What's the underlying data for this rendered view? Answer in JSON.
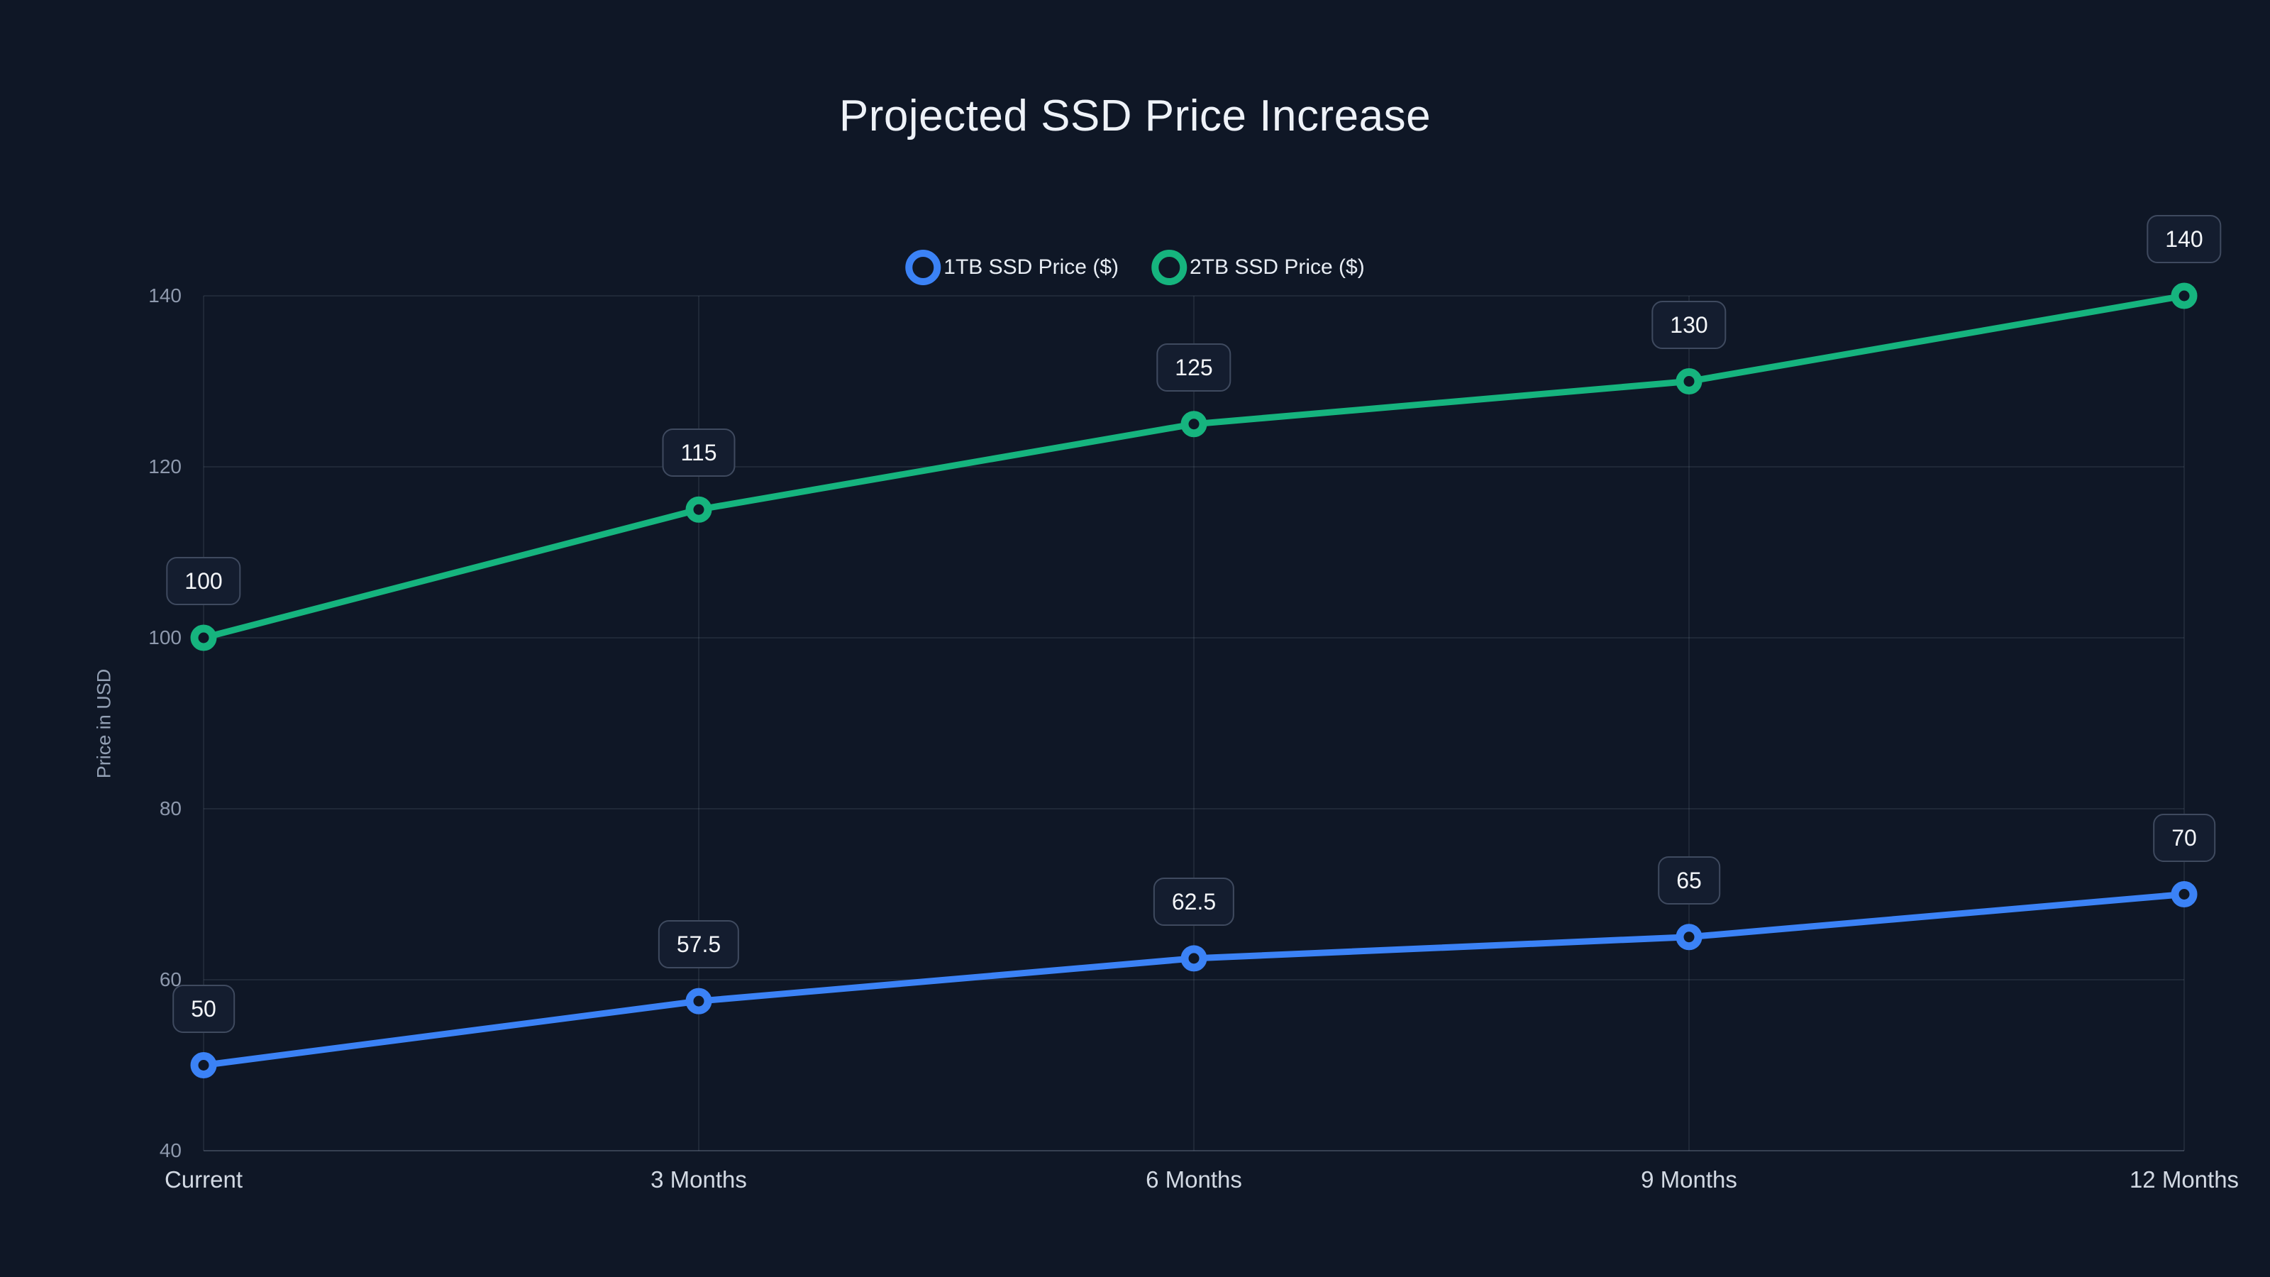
{
  "title": "Projected SSD Price Increase",
  "chart_data": {
    "type": "line",
    "title": "Projected SSD Price Increase",
    "xlabel": "",
    "ylabel": "Price in USD",
    "categories": [
      "Current",
      "3 Months",
      "6 Months",
      "9 Months",
      "12 Months"
    ],
    "series": [
      {
        "name": "1TB SSD Price ($)",
        "color": "#3b82f6",
        "values": [
          50,
          57.5,
          62.5,
          65,
          70
        ]
      },
      {
        "name": "2TB SSD Price ($)",
        "color": "#16b47e",
        "values": [
          100,
          115,
          125,
          130,
          140
        ]
      }
    ],
    "ylim": [
      40,
      140
    ],
    "yticks": [
      40,
      60,
      80,
      100,
      120,
      140
    ],
    "grid": true,
    "legend_position": "top-center",
    "data_labels": true,
    "data_label_values": [
      [
        "50",
        "57.5",
        "62.5",
        "65",
        "70"
      ],
      [
        "100",
        "115",
        "125",
        "130",
        "140"
      ]
    ],
    "marker_style": "hollow-circle"
  },
  "colors": {
    "background": "#0f1726",
    "title_text": "#eef2f8",
    "legend_text": "#e7ecf3",
    "tick_text": "#8e99ad",
    "category_text": "#d2d9e3",
    "axis_title_text": "#93a0b4",
    "grid_line": "rgba(148,163,184,0.12)",
    "axis_line": "rgba(148,163,184,0.30)",
    "badge_bg": "#141d2f",
    "badge_border": "#3f4a5f",
    "badge_text": "#f4f6f9",
    "series_1tb": "#3b82f6",
    "series_2tb": "#16b47e"
  }
}
